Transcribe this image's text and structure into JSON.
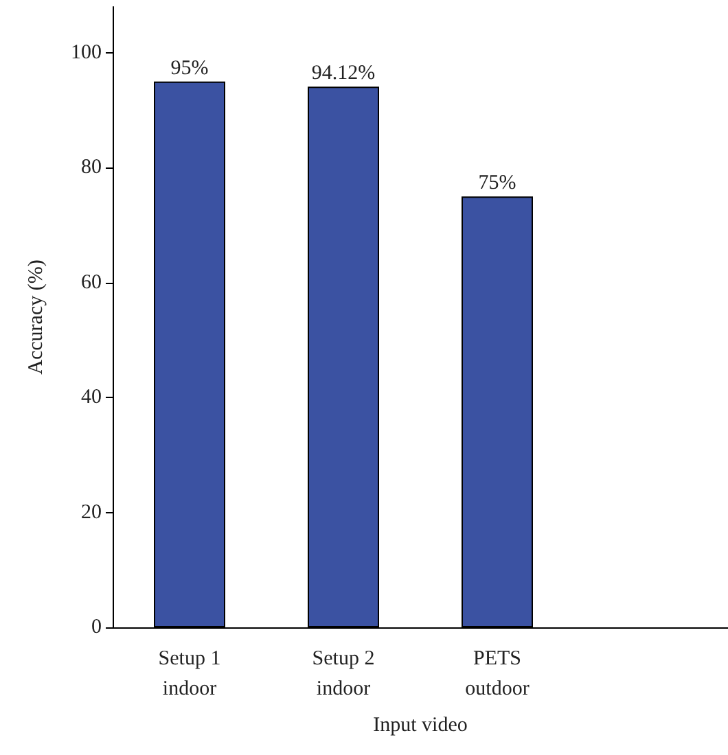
{
  "chart_data": {
    "type": "bar",
    "xlabel": "Input video",
    "ylabel": "Accuracy (%)",
    "categories": [
      "Setup 1\nindoor",
      "Setup 2\nindoor",
      "PETS\noutdoor",
      null
    ],
    "values": [
      95,
      94.12,
      75,
      null
    ],
    "value_labels": [
      "95%",
      "94.12%",
      "75%",
      null
    ],
    "color": "#3b52a2",
    "ylim": [
      0,
      108
    ],
    "yticks": [
      0,
      20,
      40,
      60,
      80,
      100
    ],
    "grid": false
  }
}
